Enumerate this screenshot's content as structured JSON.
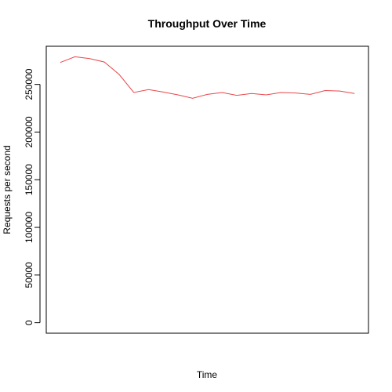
{
  "chart_data": {
    "type": "line",
    "title": "Throughput Over Time",
    "xlabel": "Time",
    "ylabel": "Requests per second",
    "x": [
      1,
      2,
      3,
      4,
      5,
      6,
      7,
      8,
      9,
      10,
      11,
      12,
      13,
      14,
      15,
      16,
      17,
      18,
      19,
      20,
      21
    ],
    "series": [
      {
        "color": "#e8474b",
        "values": [
          273000,
          279000,
          277000,
          273500,
          260500,
          241500,
          244500,
          242000,
          239000,
          235500,
          239500,
          241500,
          238500,
          240500,
          239000,
          241500,
          241000,
          239500,
          243500,
          243000,
          240500
        ]
      }
    ],
    "xlim": [
      0.05,
      21.95
    ],
    "ylim": [
      -11000,
      290000
    ],
    "yticks": [
      0,
      50000,
      100000,
      150000,
      200000,
      250000
    ],
    "ytick_labels": [
      "0",
      "50000",
      "100000",
      "150000",
      "200000",
      "250000"
    ],
    "xticks_shown": false,
    "grid": false,
    "legend": "none"
  }
}
